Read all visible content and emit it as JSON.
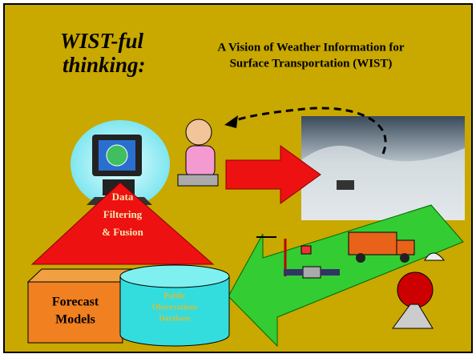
{
  "title": {
    "lines": [
      "WIST-ful",
      "thinking:"
    ]
  },
  "subtitle": {
    "lines": [
      "A Vision of Weather Information for",
      "Surface Transportation (WIST)"
    ]
  },
  "nodes": [
    {
      "label_lines": [
        "Data",
        "Filtering",
        "& Fusion"
      ]
    },
    {
      "label_lines": [
        "Forecast",
        "Models"
      ]
    },
    {
      "label_lines": [
        "Public",
        "Observations",
        "Database"
      ]
    }
  ]
}
